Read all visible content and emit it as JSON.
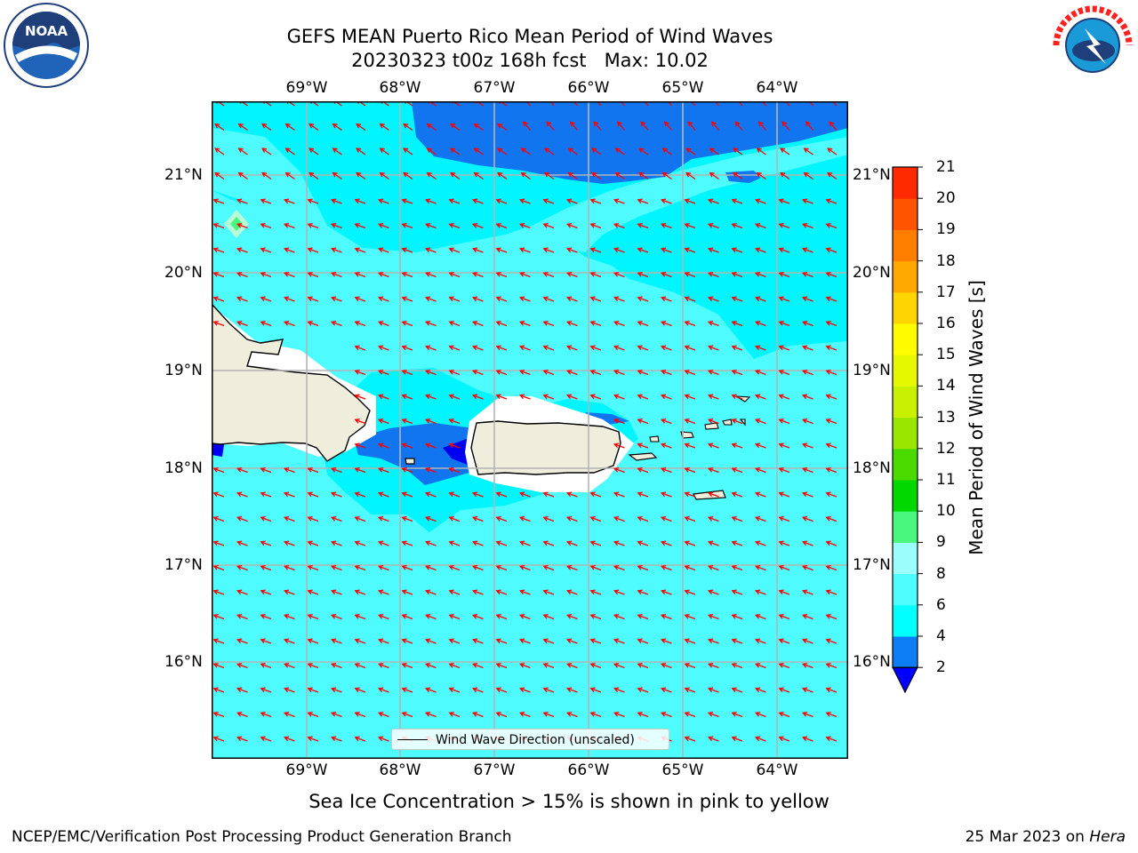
{
  "title_line1": "GEFS MEAN Puerto Rico Mean Period of Wind Waves",
  "title_line2": "20230323 t00z 168h fcst   Max: 10.02",
  "lon_labels": [
    "69°W",
    "68°W",
    "67°W",
    "66°W",
    "65°W",
    "64°W"
  ],
  "lat_labels": [
    "21°N",
    "20°N",
    "19°N",
    "18°N",
    "17°N",
    "16°N"
  ],
  "legend_label": "Wind Wave Direction (unscaled)",
  "colorbar": {
    "label": "Mean Period of Wind Waves [s]",
    "ticks": [
      "2",
      "4",
      "6",
      "8",
      "9",
      "10",
      "11",
      "12",
      "13",
      "14",
      "15",
      "16",
      "17",
      "18",
      "19",
      "20",
      "21"
    ],
    "colors": [
      "#0d7df4",
      "#00ffff",
      "#4dfdfd",
      "#9cfdfd",
      "#49f67e",
      "#00d800",
      "#4bda00",
      "#9be600",
      "#c9f000",
      "#e6f800",
      "#fffc00",
      "#ffd500",
      "#ffa800",
      "#ff7e00",
      "#ff5500",
      "#ff2a00",
      "#ff0000"
    ],
    "under_color": "#0000ff"
  },
  "map_colors": {
    "background": "#4efcff",
    "cyan_band": "#00f5ff",
    "blue": "#1175f0",
    "dark_blue": "#0000f0",
    "land": "#efeedd",
    "arrow": "#ff0000"
  },
  "sea_ice_note": "Sea Ice Concentration > 15% is shown in pink to yellow",
  "footer_left": "NCEP/EMC/Verification Post Processing Product Generation Branch",
  "footer_date": "25 Mar 2023 on",
  "footer_host": "Hera",
  "logos": {
    "left": {
      "name": "noaa-logo",
      "text": "NOAA"
    },
    "right": {
      "name": "nws-logo",
      "text": "NATIONAL WEATHER SERVICE"
    }
  }
}
